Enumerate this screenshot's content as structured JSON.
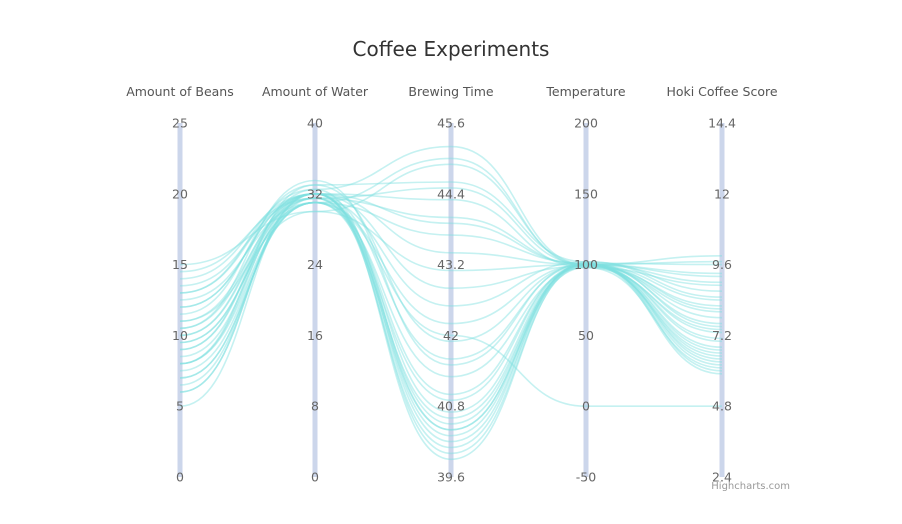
{
  "chart_data": {
    "type": "line",
    "subtype": "parallel-coordinates",
    "title": "Coffee Experiments",
    "credits": "Highcharts.com",
    "line_color": "#7fdfe0",
    "axis_color": "#ccd6eb",
    "axes": [
      {
        "name": "Amount of Beans",
        "min": 0,
        "max": 25,
        "ticks": [
          "0",
          "5",
          "10",
          "15",
          "20",
          "25"
        ]
      },
      {
        "name": "Amount of Water",
        "min": 0,
        "max": 40,
        "ticks": [
          "0",
          "8",
          "16",
          "24",
          "32",
          "40"
        ]
      },
      {
        "name": "Brewing Time",
        "min": 39.6,
        "max": 45.6,
        "ticks": [
          "39.6",
          "40.8",
          "42",
          "43.2",
          "44.4",
          "45.6"
        ]
      },
      {
        "name": "Temperature",
        "min": -50,
        "max": 200,
        "ticks": [
          "-50",
          "0",
          "50",
          "100",
          "150",
          "200"
        ]
      },
      {
        "name": "Hoki Coffee Score",
        "min": 2.4,
        "max": 14.4,
        "ticks": [
          "2.4",
          "4.8",
          "7.2",
          "9.6",
          "12",
          "14.4"
        ]
      }
    ],
    "series": [
      {
        "values": [
          5,
          32,
          40.7,
          100,
          6.2
        ]
      },
      {
        "values": [
          6,
          32,
          40.5,
          100,
          5.9
        ]
      },
      {
        "values": [
          6.5,
          31.5,
          40.4,
          98,
          6.1
        ]
      },
      {
        "values": [
          7,
          31,
          40.9,
          100,
          6.5
        ]
      },
      {
        "values": [
          7.5,
          31,
          40.6,
          99,
          6.6
        ]
      },
      {
        "values": [
          8,
          32,
          40.3,
          101,
          6.0
        ]
      },
      {
        "values": [
          8.5,
          31.5,
          41.0,
          100,
          6.8
        ]
      },
      {
        "values": [
          9,
          32.5,
          40.4,
          100,
          7.0
        ]
      },
      {
        "values": [
          9.5,
          31,
          41.3,
          98,
          7.4
        ]
      },
      {
        "values": [
          10,
          32,
          40.2,
          100,
          6.4
        ]
      },
      {
        "values": [
          10.5,
          32,
          41.6,
          100,
          7.8
        ]
      },
      {
        "values": [
          11,
          31.5,
          40.1,
          101,
          6.3
        ]
      },
      {
        "values": [
          11.5,
          33,
          41.9,
          100,
          8.1
        ]
      },
      {
        "values": [
          12,
          32,
          40.0,
          99,
          7.3
        ]
      },
      {
        "values": [
          12.5,
          31,
          42.2,
          100,
          8.4
        ]
      },
      {
        "values": [
          13,
          32,
          39.9,
          100,
          6.7
        ]
      },
      {
        "values": [
          13.5,
          31.5,
          42.5,
          102,
          8.7
        ]
      },
      {
        "values": [
          14,
          32,
          42.8,
          99,
          8.0
        ]
      },
      {
        "values": [
          15,
          30,
          43.1,
          100,
          9.0
        ]
      },
      {
        "values": [
          9,
          32,
          43.4,
          100,
          9.3
        ]
      },
      {
        "values": [
          7,
          31,
          43.7,
          101,
          9.6
        ]
      },
      {
        "values": [
          10,
          31.5,
          44.0,
          100,
          9.9
        ]
      },
      {
        "values": [
          12,
          32,
          44.3,
          98,
          8.9
        ]
      },
      {
        "values": [
          8,
          33,
          44.6,
          102,
          8.5
        ]
      },
      {
        "values": [
          11,
          30,
          44.9,
          100,
          9.2
        ]
      },
      {
        "values": [
          13,
          32.5,
          45.2,
          100,
          7.6
        ]
      },
      {
        "values": [
          9.5,
          31,
          45.0,
          99,
          8.2
        ]
      },
      {
        "values": [
          14.5,
          31.5,
          44.5,
          100,
          9.7
        ]
      },
      {
        "values": [
          6,
          32,
          43.9,
          100,
          7.1
        ]
      },
      {
        "values": [
          10.5,
          33.5,
          41.5,
          101,
          7.5
        ]
      },
      {
        "values": [
          8,
          31,
          42.0,
          0,
          4.8
        ]
      }
    ]
  }
}
